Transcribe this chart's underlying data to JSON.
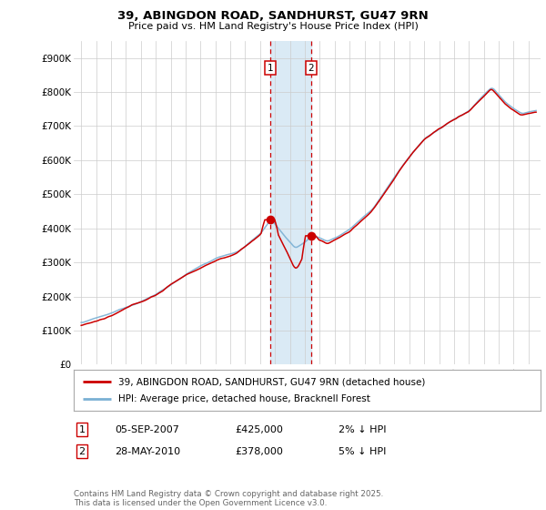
{
  "title": "39, ABINGDON ROAD, SANDHURST, GU47 9RN",
  "subtitle": "Price paid vs. HM Land Registry's House Price Index (HPI)",
  "footer": "Contains HM Land Registry data © Crown copyright and database right 2025.\nThis data is licensed under the Open Government Licence v3.0.",
  "legend_line1": "39, ABINGDON ROAD, SANDHURST, GU47 9RN (detached house)",
  "legend_line2": "HPI: Average price, detached house, Bracknell Forest",
  "sale1_date": "05-SEP-2007",
  "sale1_price": "£425,000",
  "sale1_hpi": "2% ↓ HPI",
  "sale2_date": "28-MAY-2010",
  "sale2_price": "£378,000",
  "sale2_hpi": "5% ↓ HPI",
  "sale1_year": 2007.67,
  "sale2_year": 2010.41,
  "sale1_value": 425000,
  "sale2_value": 378000,
  "red_color": "#cc0000",
  "blue_color": "#7ab0d4",
  "highlight_color": "#daeaf5",
  "grid_color": "#cccccc",
  "background_color": "#ffffff",
  "ylim": [
    0,
    950000
  ],
  "yticks": [
    0,
    100000,
    200000,
    300000,
    400000,
    500000,
    600000,
    700000,
    800000,
    900000
  ],
  "ytick_labels": [
    "£0",
    "£100K",
    "£200K",
    "£300K",
    "£400K",
    "£500K",
    "£600K",
    "£700K",
    "£800K",
    "£900K"
  ],
  "xlim_start": 1994.5,
  "xlim_end": 2025.8,
  "xticks": [
    1995,
    1996,
    1997,
    1998,
    1999,
    2000,
    2001,
    2002,
    2003,
    2004,
    2005,
    2006,
    2007,
    2008,
    2009,
    2010,
    2011,
    2012,
    2013,
    2014,
    2015,
    2016,
    2017,
    2018,
    2019,
    2020,
    2021,
    2022,
    2023,
    2024,
    2025
  ]
}
